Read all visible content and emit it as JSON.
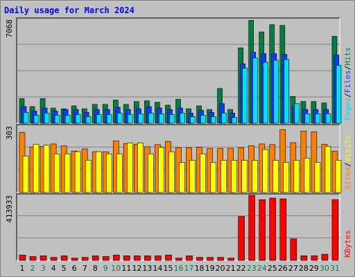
{
  "title": "Daily usage for March 2024",
  "colors": {
    "hits": "#008040",
    "files": "#0040ff",
    "pages": "#00e0ff",
    "visits": "#ffff00",
    "sites": "#ff8000",
    "kbytes": "#ff0000",
    "weekday_label": "#000000",
    "weekend_label": "#008040",
    "panel_bg": "#c0c0c0",
    "grid": "#808080"
  },
  "chart_data": {
    "type": "bar",
    "title": "Daily usage for March 2024",
    "x": [
      "1",
      "2",
      "3",
      "4",
      "5",
      "6",
      "7",
      "8",
      "9",
      "10",
      "11",
      "12",
      "13",
      "14",
      "15",
      "16",
      "17",
      "18",
      "19",
      "20",
      "21",
      "22",
      "23",
      "24",
      "25",
      "26",
      "27",
      "28",
      "29",
      "30",
      "31"
    ],
    "weekend_days": [
      "2",
      "3",
      "9",
      "10",
      "16",
      "17",
      "23",
      "24",
      "30",
      "31"
    ],
    "panels": [
      {
        "name": "hits-files-pages",
        "ymax_label": "7068",
        "ymax": 7068,
        "legend": [
          "Pages",
          "/",
          "Files",
          "/",
          "Hits"
        ],
        "series": [
          {
            "name": "Hits",
            "values": [
              1700,
              1150,
              1700,
              1050,
              1000,
              1200,
              1000,
              1300,
              1300,
              1600,
              1300,
              1500,
              1550,
              1450,
              1250,
              1650,
              1000,
              1200,
              950,
              2400,
              950,
              5200,
              7100,
              6300,
              6800,
              6750,
              1850,
              1500,
              1500,
              1400,
              6000
            ]
          },
          {
            "name": "Files",
            "values": [
              1150,
              850,
              1050,
              850,
              950,
              950,
              750,
              950,
              950,
              1100,
              950,
              1000,
              1150,
              1050,
              950,
              1050,
              700,
              900,
              750,
              1350,
              700,
              4100,
              4900,
              4800,
              4800,
              4750,
              1150,
              950,
              950,
              950,
              4700
            ]
          },
          {
            "name": "Pages",
            "values": [
              750,
              550,
              700,
              550,
              550,
              600,
              450,
              600,
              600,
              700,
              600,
              650,
              700,
              650,
              600,
              700,
              450,
              550,
              450,
              700,
              400,
              3800,
              4500,
              4200,
              4350,
              4400,
              1350,
              650,
              650,
              650,
              4000
            ]
          }
        ]
      },
      {
        "name": "sites-visits",
        "ymax_label": "303",
        "ymax": 303,
        "legend": [
          "Sites",
          "/",
          "Visits"
        ],
        "series": [
          {
            "name": "Sites",
            "values": [
              280,
              212,
              215,
              226,
              217,
              193,
              203,
              190,
              190,
              240,
              228,
              225,
              213,
              223,
              238,
              208,
              208,
              210,
              205,
              205,
              205,
              208,
              218,
              226,
              223,
              293,
              232,
              286,
              283,
              225,
              193
            ]
          },
          {
            "name": "Visits",
            "values": [
              170,
              225,
              220,
              180,
              180,
              190,
              150,
              190,
              180,
              180,
              230,
              230,
              180,
              210,
              190,
              140,
              150,
              180,
              140,
              150,
              150,
              150,
              150,
              200,
              150,
              140,
              150,
              160,
              140,
              215,
              150
            ]
          }
        ]
      },
      {
        "name": "kbytes",
        "ymax_label": "413933",
        "ymax": 413933,
        "legend": [
          "KBytes"
        ],
        "series": [
          {
            "name": "KBytes",
            "values": [
              35000,
              25000,
              30000,
              20000,
              30000,
              15000,
              20000,
              30000,
              25000,
              35000,
              30000,
              30000,
              30000,
              30000,
              35000,
              15000,
              30000,
              20000,
              20000,
              20000,
              15000,
              285000,
              425000,
              395000,
              405000,
              400000,
              140000,
              30000,
              30000,
              40000,
              395000
            ]
          }
        ]
      }
    ]
  }
}
